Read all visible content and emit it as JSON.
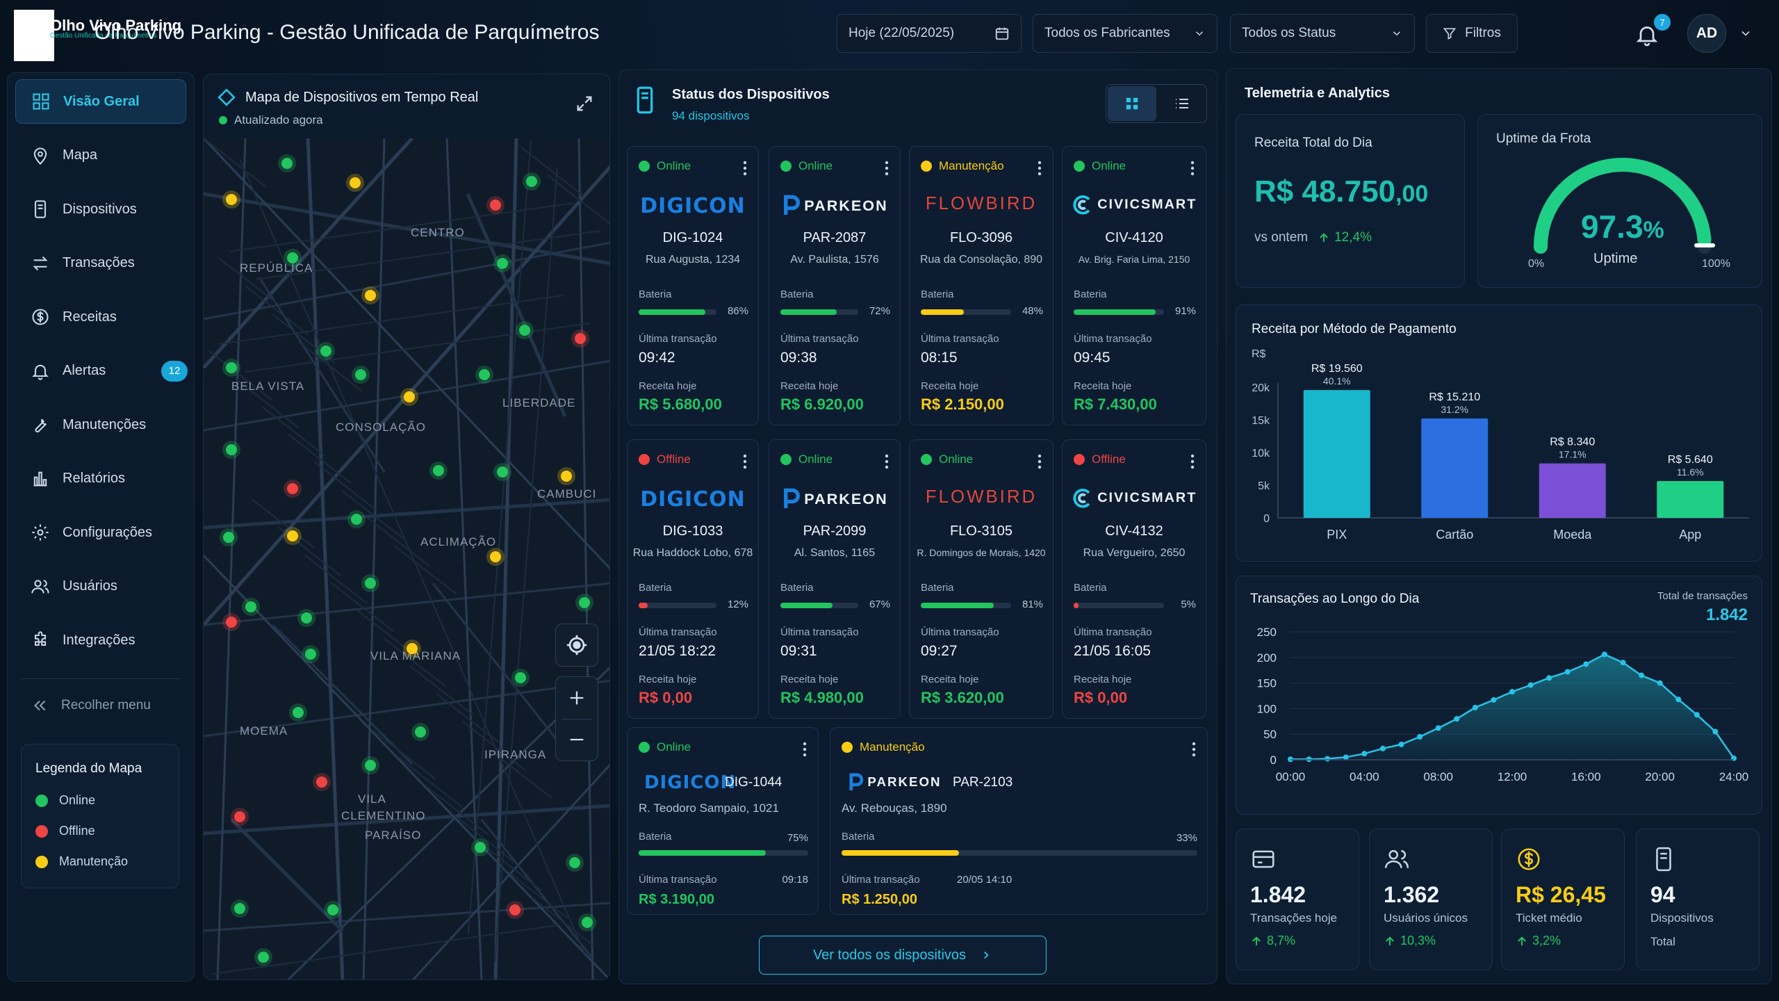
{
  "header": {
    "logo_text": "Olho Vivo Parking",
    "logo_sub": "Gestão Unificada de Parquímetros",
    "title": "Olho Vivo Parking - Gestão Unificada de Parquímetros",
    "date": "Hoje (22/05/2025)",
    "manufacturers": "Todos os Fabricantes",
    "status": "Todos os Status",
    "filters": "Filtros",
    "notifications": "7",
    "avatar": "AD"
  },
  "sidebar": {
    "items": [
      {
        "label": "Visão Geral",
        "icon": "grid-icon"
      },
      {
        "label": "Mapa",
        "icon": "map-pin-icon"
      },
      {
        "label": "Dispositivos",
        "icon": "device-icon"
      },
      {
        "label": "Transações",
        "icon": "arrows-icon"
      },
      {
        "label": "Receitas",
        "icon": "dollar-icon"
      },
      {
        "label": "Alertas",
        "icon": "bell-icon",
        "badge": "12"
      },
      {
        "label": "Manutenções",
        "icon": "wrench-icon"
      },
      {
        "label": "Relatórios",
        "icon": "bar-chart-icon"
      },
      {
        "label": "Configurações",
        "icon": "gear-icon"
      },
      {
        "label": "Usuários",
        "icon": "users-icon"
      },
      {
        "label": "Integrações",
        "icon": "puzzle-icon"
      }
    ],
    "collapse": "Recolher menu",
    "legend": {
      "title": "Legenda do Mapa",
      "online": "Online",
      "offline": "Offline",
      "maintenance": "Manutenção"
    }
  },
  "map": {
    "title": "Mapa de Dispositivos em Tempo Real",
    "updated": "Atualizado agora",
    "districts": [
      "CENTRO",
      "REPÚBLICA",
      "BELA VISTA",
      "LIBERDADE",
      "CONSOLAÇÃO",
      "CAMBUCI",
      "ACLIMAÇÃO",
      "VILA MARIANA",
      "MOEMA",
      "IPIRANGA",
      "VILA CLEMENTINO",
      "PARAÍSO"
    ]
  },
  "devices": {
    "title": "Status dos Dispositivos",
    "count": "94 dispositivos",
    "battery_label": "Bateria",
    "last_tx_label": "Última transação",
    "revenue_label": "Receita hoje",
    "view_all": "Ver todos os dispositivos",
    "cards": [
      {
        "status": "Online",
        "brand": "DIGICON",
        "code": "DIG-1024",
        "addr": "Rua Augusta, 1234",
        "battery": 86,
        "battery_text": "86%",
        "last": "09:42",
        "revenue": "R$ 5.680,00"
      },
      {
        "status": "Online",
        "brand": "PARKEON",
        "code": "PAR-2087",
        "addr": "Av. Paulista, 1576",
        "battery": 72,
        "battery_text": "72%",
        "last": "09:38",
        "revenue": "R$ 6.920,00"
      },
      {
        "status": "Manutenção",
        "brand": "FLOWBIRD",
        "code": "FLO-3096",
        "addr": "Rua da Consolação, 890",
        "battery": 48,
        "battery_text": "48%",
        "last": "08:15",
        "revenue": "R$ 2.150,00"
      },
      {
        "status": "Online",
        "brand": "CIVICSMART",
        "code": "CIV-4120",
        "addr": "Av. Brig. Faria Lima, 2150",
        "battery": 91,
        "battery_text": "91%",
        "last": "09:45",
        "revenue": "R$ 7.430,00"
      },
      {
        "status": "Offline",
        "brand": "DIGICON",
        "code": "DIG-1033",
        "addr": "Rua Haddock Lobo, 678",
        "battery": 12,
        "battery_text": "12%",
        "last": "21/05 18:22",
        "revenue": "R$ 0,00"
      },
      {
        "status": "Online",
        "brand": "PARKEON",
        "code": "PAR-2099",
        "addr": "Al. Santos, 1165",
        "battery": 67,
        "battery_text": "67%",
        "last": "09:31",
        "revenue": "R$ 4.980,00"
      },
      {
        "status": "Online",
        "brand": "FLOWBIRD",
        "code": "FLO-3105",
        "addr": "R. Domingos de Morais, 1420",
        "battery": 81,
        "battery_text": "81%",
        "last": "09:27",
        "revenue": "R$ 3.620,00"
      },
      {
        "status": "Offline",
        "brand": "CIVICSMART",
        "code": "CIV-4132",
        "addr": "Rua Vergueiro, 2650",
        "battery": 5,
        "battery_text": "5%",
        "last": "21/05 16:05",
        "revenue": "R$ 0,00"
      }
    ],
    "wide_cards": [
      {
        "status": "Online",
        "brand": "DIGICON",
        "code": "DIG-1044",
        "addr": "R. Teodoro Sampaio, 1021",
        "battery": 75,
        "battery_text": "75%",
        "last": "09:18",
        "revenue": "R$ 3.190,00"
      },
      {
        "status": "Manutenção",
        "brand": "PARKEON",
        "code": "PAR-2103",
        "addr": "Av. Rebouças, 1890",
        "battery": 33,
        "battery_text": "33%",
        "last": "20/05 14:10",
        "revenue": "R$ 1.250,00"
      }
    ]
  },
  "telemetry": {
    "title": "Telemetria e Analytics",
    "revenue": {
      "label": "Receita Total do Dia",
      "value": "R$ 48.750",
      "cents": ",00",
      "vs": "vs ontem",
      "delta": "12,4%"
    },
    "uptime": {
      "label": "Uptime da Frota",
      "value": "97.3",
      "unit": "%",
      "caption": "Uptime",
      "min": "0%",
      "max": "100%",
      "fraction": 0.973
    },
    "payment": {
      "title": "Receita por Método de Pagamento",
      "unit": "R$"
    },
    "transactions": {
      "title": "Transações ao Longo do Dia",
      "total_label": "Total de transações",
      "total": "1.842"
    },
    "kpis": [
      {
        "value": "1.842",
        "label": "Transações hoje",
        "delta": "8,7%",
        "icon": "card-icon"
      },
      {
        "value": "1.362",
        "label": "Usuários únicos",
        "delta": "10,3%",
        "icon": "users-icon"
      },
      {
        "value": "R$ 26,45",
        "label": "Ticket médio",
        "delta": "3,2%",
        "icon": "coin-icon"
      },
      {
        "value": "94",
        "label": "Dispositivos",
        "label2": "Total",
        "icon": "device-icon"
      }
    ]
  },
  "colors": {
    "online": "#22c55e",
    "offline": "#ef4444",
    "maintenance": "#facc15",
    "accent": "#22c7e6",
    "up": "#22c55e"
  },
  "chart_data": [
    {
      "type": "bar",
      "title": "Receita por Método de Pagamento",
      "ylabel": "R$",
      "categories": [
        "PIX",
        "Cartão",
        "Moeda",
        "App"
      ],
      "values": [
        19560,
        15210,
        8340,
        5640
      ],
      "value_labels": [
        "R$ 19.560",
        "R$ 15.210",
        "R$ 8.340",
        "R$ 5.640"
      ],
      "percent_labels": [
        "40.1%",
        "31.2%",
        "17.1%",
        "11.6%"
      ],
      "colors": [
        "#19b7cc",
        "#2b6fe0",
        "#7b4fd6",
        "#1fcf86"
      ],
      "yticks": [
        "0",
        "5k",
        "10k",
        "15k",
        "20k"
      ],
      "ylim": [
        0,
        20000
      ]
    },
    {
      "type": "area",
      "title": "Transações ao Longo do Dia",
      "x": [
        0,
        1,
        2,
        3,
        4,
        5,
        6,
        7,
        8,
        9,
        10,
        11,
        12,
        13,
        14,
        15,
        16,
        17,
        18,
        19,
        20,
        21,
        22,
        23,
        24
      ],
      "xticks": [
        "00:00",
        "04:00",
        "08:00",
        "12:00",
        "16:00",
        "20:00",
        "24:00"
      ],
      "yticks": [
        "0",
        "50",
        "100",
        "150",
        "200",
        "250"
      ],
      "values": [
        1,
        1,
        2,
        5,
        12,
        22,
        30,
        45,
        62,
        80,
        102,
        117,
        133,
        146,
        160,
        172,
        187,
        206,
        190,
        165,
        150,
        118,
        88,
        55,
        3
      ],
      "ylim": [
        0,
        250
      ],
      "grid": true
    }
  ]
}
